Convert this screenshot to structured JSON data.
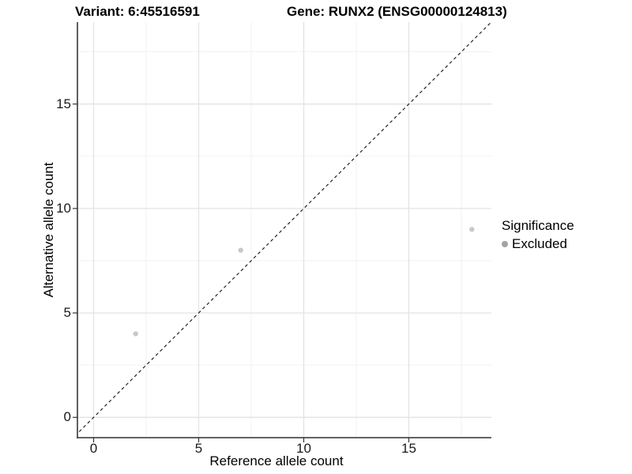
{
  "chart_data": {
    "type": "scatter",
    "title_left": "Variant: 6:45516591",
    "title_right": "Gene: RUNX2 (ENSG00000124813)",
    "xlabel": "Reference allele count",
    "ylabel": "Alternative allele count",
    "xlim": [
      -0.75,
      18.95
    ],
    "ylim": [
      -0.95,
      18.9
    ],
    "xticks": [
      0,
      5,
      10,
      15
    ],
    "yticks": [
      0,
      5,
      10,
      15
    ],
    "xticks_minor": [
      2.5,
      7.5,
      12.5,
      17.5
    ],
    "yticks_minor": [
      2.5,
      7.5,
      12.5,
      17.5
    ],
    "grid": "major+minor",
    "identity_line": {
      "type": "abline y=x",
      "style": "dashed",
      "color": "#111111"
    },
    "series": [
      {
        "name": "Excluded",
        "color": "#c8c8c8",
        "points": [
          [
            2,
            4
          ],
          [
            7,
            8
          ],
          [
            18,
            9
          ]
        ]
      }
    ],
    "legend": {
      "title": "Significance",
      "position": "right",
      "entries": [
        {
          "label": "Excluded",
          "color": "#a3a3a3"
        }
      ]
    },
    "colors": {
      "grid_major": "#e3e3e3",
      "grid_minor": "#f0f0f0",
      "axis_line": "#4d4d4d",
      "tick": "#333333",
      "point": "#c8c8c8",
      "legend_key": "#a3a3a3",
      "identity": "#111111"
    }
  }
}
